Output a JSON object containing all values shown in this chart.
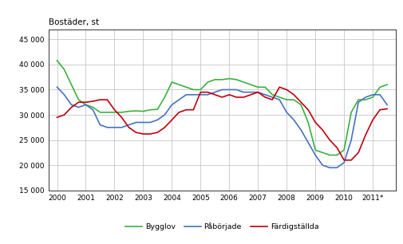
{
  "title": "Bostäder, st",
  "ylim": [
    15000,
    47000
  ],
  "yticks": [
    15000,
    20000,
    25000,
    30000,
    35000,
    40000,
    45000
  ],
  "ytick_labels": [
    "15 000",
    "20 000",
    "25 000",
    "30 000",
    "35 000",
    "40 000",
    "45 000"
  ],
  "xtick_labels": [
    "2000",
    "2001",
    "2002",
    "2003",
    "2004",
    "2005",
    "2006",
    "2007",
    "2008",
    "2009",
    "2010",
    "2011*"
  ],
  "xtick_positions": [
    2000,
    2001,
    2002,
    2003,
    2004,
    2005,
    2006,
    2007,
    2008,
    2009,
    2010,
    2011
  ],
  "xlim": [
    1999.7,
    2011.8
  ],
  "bygglov": {
    "label": "Bygglov",
    "color": "#3cb040",
    "x": [
      2000,
      2000.25,
      2000.5,
      2000.75,
      2001,
      2001.25,
      2001.5,
      2001.75,
      2002,
      2002.25,
      2002.5,
      2002.75,
      2003,
      2003.25,
      2003.5,
      2003.75,
      2004,
      2004.25,
      2004.5,
      2004.75,
      2005,
      2005.25,
      2005.5,
      2005.75,
      2006,
      2006.25,
      2006.5,
      2006.75,
      2007,
      2007.25,
      2007.5,
      2007.75,
      2008,
      2008.25,
      2008.5,
      2008.75,
      2009,
      2009.25,
      2009.5,
      2009.75,
      2010,
      2010.25,
      2010.5,
      2010.75,
      2011,
      2011.25,
      2011.5
    ],
    "y": [
      40800,
      39000,
      36000,
      33000,
      32000,
      31500,
      30500,
      30500,
      30500,
      30500,
      30700,
      30800,
      30700,
      31000,
      31100,
      33500,
      36500,
      36000,
      35500,
      35000,
      35000,
      36500,
      37000,
      37000,
      37200,
      37000,
      36500,
      36000,
      35500,
      35500,
      34000,
      33500,
      33000,
      33000,
      32000,
      28500,
      23000,
      22500,
      22000,
      22000,
      23000,
      30500,
      33000,
      33000,
      33500,
      35500,
      36000
    ]
  },
  "paborjade": {
    "label": "Påbörjade",
    "color": "#4472c4",
    "x": [
      2000,
      2000.25,
      2000.5,
      2000.75,
      2001,
      2001.25,
      2001.5,
      2001.75,
      2002,
      2002.25,
      2002.5,
      2002.75,
      2003,
      2003.25,
      2003.5,
      2003.75,
      2004,
      2004.25,
      2004.5,
      2004.75,
      2005,
      2005.25,
      2005.5,
      2005.75,
      2006,
      2006.25,
      2006.5,
      2006.75,
      2007,
      2007.25,
      2007.5,
      2007.75,
      2008,
      2008.25,
      2008.5,
      2008.75,
      2009,
      2009.25,
      2009.5,
      2009.75,
      2010,
      2010.25,
      2010.5,
      2010.75,
      2011,
      2011.25,
      2011.5
    ],
    "y": [
      35500,
      34000,
      32000,
      31500,
      32000,
      31000,
      28000,
      27500,
      27500,
      27500,
      28000,
      28500,
      28500,
      28500,
      29000,
      30000,
      32000,
      33000,
      34000,
      34000,
      34000,
      34000,
      34500,
      35000,
      35000,
      35000,
      34500,
      34500,
      34500,
      34000,
      33500,
      33000,
      30500,
      29000,
      27000,
      24500,
      22000,
      20000,
      19500,
      19500,
      20500,
      25000,
      32500,
      33500,
      34000,
      34000,
      32000
    ]
  },
  "fardigstallda": {
    "label": "Färdigställda",
    "color": "#c0000e",
    "x": [
      2000,
      2000.25,
      2000.5,
      2000.75,
      2001,
      2001.25,
      2001.5,
      2001.75,
      2002,
      2002.25,
      2002.5,
      2002.75,
      2003,
      2003.25,
      2003.5,
      2003.75,
      2004,
      2004.25,
      2004.5,
      2004.75,
      2005,
      2005.25,
      2005.5,
      2005.75,
      2006,
      2006.25,
      2006.5,
      2006.75,
      2007,
      2007.25,
      2007.5,
      2007.75,
      2008,
      2008.25,
      2008.5,
      2008.75,
      2009,
      2009.25,
      2009.5,
      2009.75,
      2010,
      2010.25,
      2010.5,
      2010.75,
      2011,
      2011.25,
      2011.5
    ],
    "y": [
      29500,
      30000,
      31500,
      32500,
      32500,
      32700,
      33000,
      33000,
      31000,
      29500,
      27500,
      26500,
      26200,
      26200,
      26500,
      27500,
      29000,
      30500,
      31000,
      31000,
      34500,
      34500,
      34000,
      33500,
      34000,
      33500,
      33500,
      34000,
      34500,
      33500,
      33000,
      35500,
      35000,
      34000,
      32500,
      31000,
      28500,
      27000,
      25000,
      23500,
      21000,
      21000,
      22500,
      26000,
      29000,
      31000,
      31200
    ]
  },
  "background_color": "#ffffff",
  "grid_color": "#bbbbbb",
  "linewidth": 1.2
}
